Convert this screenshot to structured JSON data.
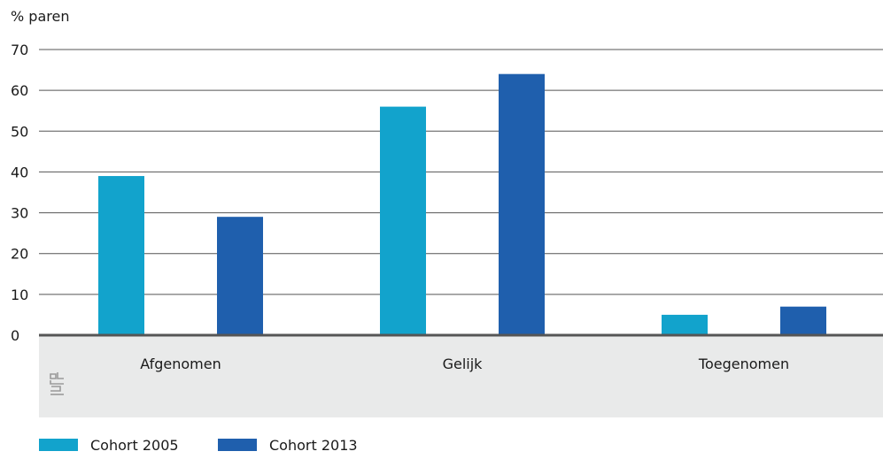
{
  "chart_data": {
    "type": "bar",
    "ylabel": "% paren",
    "categories": [
      "Afgenomen",
      "Gelijk",
      "Toegenomen"
    ],
    "series": [
      {
        "name": "Cohort 2005",
        "values": [
          39,
          56,
          5
        ],
        "color": "#12a3cc"
      },
      {
        "name": "Cohort 2013",
        "values": [
          29,
          64,
          7
        ],
        "color": "#1f5fad"
      }
    ],
    "ylim": [
      0,
      70
    ],
    "yticks": [
      0,
      10,
      20,
      30,
      40,
      50,
      60,
      70
    ],
    "grid": true,
    "legend_position": "bottom-left",
    "axis_band_color": "#e9eaea",
    "grid_color": "#555555"
  },
  "logo": {
    "icon": "cbs-logo-icon",
    "text": "cbs"
  }
}
